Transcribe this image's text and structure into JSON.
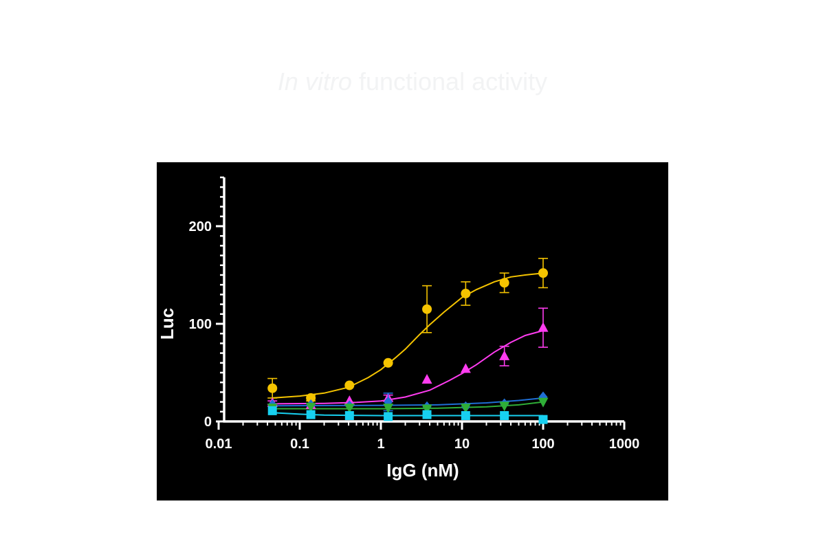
{
  "heading": {
    "italic_part": "In vitro",
    "rest": " functional activity"
  },
  "chart_data": {
    "type": "scatter",
    "title": "",
    "xlabel": "IgG (nM)",
    "ylabel": "Luc",
    "x_scale": "log",
    "xlim": [
      0.01,
      1000
    ],
    "ylim": [
      0,
      250
    ],
    "x_ticks": [
      {
        "value": 0.01,
        "label": "0.01"
      },
      {
        "value": 0.1,
        "label": "0.1"
      },
      {
        "value": 1,
        "label": "1"
      },
      {
        "value": 10,
        "label": "10"
      },
      {
        "value": 100,
        "label": "100"
      },
      {
        "value": 1000,
        "label": "1000"
      }
    ],
    "y_ticks": [
      {
        "value": 0,
        "label": "0"
      },
      {
        "value": 100,
        "label": "100"
      },
      {
        "value": 200,
        "label": "200"
      }
    ],
    "grid": false,
    "legend": "none",
    "colors": {
      "background": "#000000",
      "axis": "#ffffff",
      "text": "#ffffff",
      "heading": "#f2f3f4"
    },
    "series": [
      {
        "marker": "circle",
        "color": "#f5c400",
        "x": [
          0.046,
          0.137,
          0.41,
          1.23,
          3.7,
          11.1,
          33.3,
          100
        ],
        "y": [
          34,
          24,
          37,
          60,
          115,
          131,
          142,
          152
        ],
        "err": [
          10,
          3,
          0,
          0,
          24,
          12,
          10,
          15
        ],
        "fit": [
          [
            0.046,
            24
          ],
          [
            0.1,
            26
          ],
          [
            0.2,
            29
          ],
          [
            0.4,
            35
          ],
          [
            0.7,
            45
          ],
          [
            1,
            53
          ],
          [
            1.5,
            65
          ],
          [
            2,
            74
          ],
          [
            3,
            89
          ],
          [
            4,
            99
          ],
          [
            6,
            112
          ],
          [
            10,
            127
          ],
          [
            15,
            135
          ],
          [
            25,
            143
          ],
          [
            40,
            148
          ],
          [
            60,
            150
          ],
          [
            100,
            152
          ]
        ]
      },
      {
        "marker": "triangle-up",
        "color": "#ff3cf0",
        "x": [
          0.046,
          0.137,
          0.41,
          1.23,
          3.7,
          11.1,
          33.3,
          100
        ],
        "y": [
          19,
          17,
          21,
          24,
          43,
          54,
          67,
          96
        ],
        "err": [
          2,
          0,
          0,
          3,
          0,
          0,
          10,
          20
        ],
        "fit": [
          [
            0.046,
            18
          ],
          [
            0.2,
            18.5
          ],
          [
            0.5,
            19.5
          ],
          [
            1,
            21
          ],
          [
            2,
            25
          ],
          [
            4,
            32
          ],
          [
            7,
            42
          ],
          [
            10,
            49
          ],
          [
            15,
            58
          ],
          [
            25,
            71
          ],
          [
            40,
            81
          ],
          [
            60,
            88
          ],
          [
            100,
            93
          ]
        ]
      },
      {
        "marker": "diamond",
        "color": "#1f6fd6",
        "x": [
          0.046,
          0.137,
          0.41,
          1.23,
          3.7,
          11.1,
          33.3,
          100
        ],
        "y": [
          17,
          17,
          16,
          20,
          15,
          15,
          18,
          25
        ],
        "err": [
          0,
          0,
          0,
          9,
          0,
          0,
          0,
          0
        ],
        "fit": [
          [
            0.046,
            16
          ],
          [
            1,
            16.5
          ],
          [
            5,
            17
          ],
          [
            20,
            19
          ],
          [
            50,
            21.5
          ],
          [
            100,
            24
          ]
        ]
      },
      {
        "marker": "triangle-down",
        "color": "#2fae37",
        "x": [
          0.046,
          0.137,
          0.41,
          1.23,
          3.7,
          11.1,
          33.3,
          100
        ],
        "y": [
          14,
          15,
          14,
          14,
          13,
          14,
          16,
          20
        ],
        "err": [
          0,
          0,
          0,
          0,
          0,
          0,
          0,
          0
        ],
        "fit": [
          [
            0.046,
            13
          ],
          [
            1,
            13
          ],
          [
            5,
            13.5
          ],
          [
            20,
            15
          ],
          [
            50,
            17
          ],
          [
            100,
            20
          ]
        ]
      },
      {
        "marker": "square",
        "color": "#17d0f0",
        "x": [
          0.046,
          0.137,
          0.41,
          1.23,
          3.7,
          11.1,
          33.3,
          100
        ],
        "y": [
          11,
          7,
          6,
          5,
          7,
          6,
          6,
          2
        ],
        "err": [
          0,
          0,
          0,
          0,
          0,
          0,
          0,
          0
        ],
        "fit": [
          [
            0.046,
            9
          ],
          [
            0.1,
            7.5
          ],
          [
            0.2,
            6.5
          ],
          [
            1,
            6
          ],
          [
            10,
            6
          ],
          [
            100,
            6
          ]
        ]
      }
    ]
  }
}
